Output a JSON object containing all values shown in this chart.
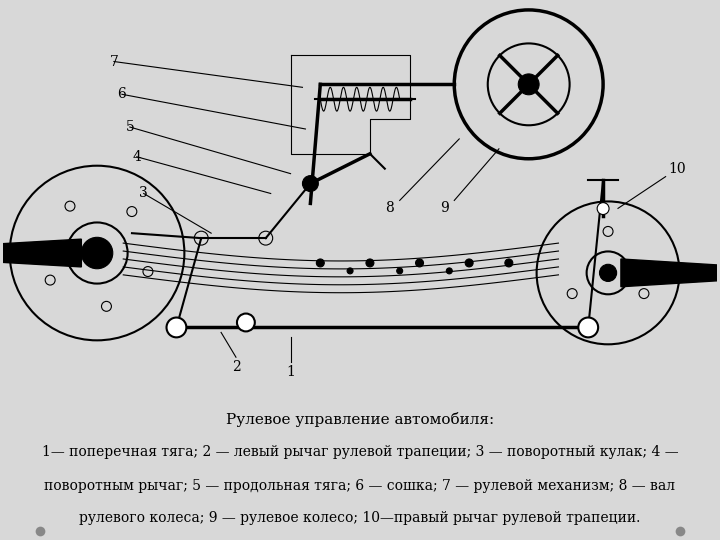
{
  "title_line": "Рулевое управление автомобиля:",
  "caption_line1": "1— поперечная тяга; 2 — левый рычаг рулевой трапеции; 3 — поворотный кулак; 4 —",
  "caption_line2": "поворотным рычаг; 5 — продольная тяга; 6 — сошка; 7 — рулевой механизм; 8 — вал",
  "caption_line3": "рулевого колеса; 9 — рулевое колесо; 10—правый рычаг рулевой трапеции.",
  "bg_color": "#d8d8d8",
  "diagram_bg": "#ffffff",
  "title_fontsize": 11,
  "caption_fontsize": 10,
  "fig_width": 7.2,
  "fig_height": 5.4,
  "dpi": 100
}
